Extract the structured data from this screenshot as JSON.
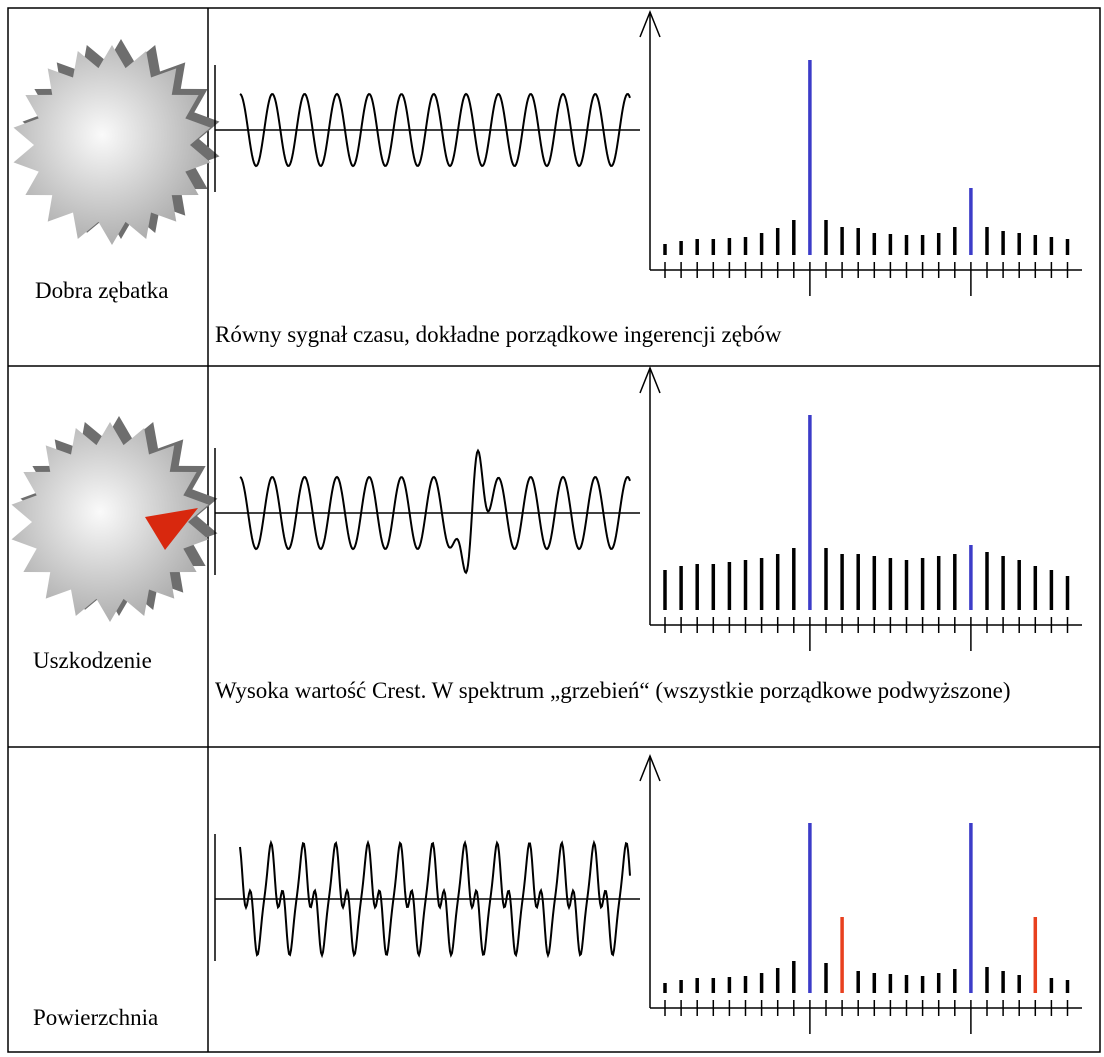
{
  "rows": [
    {
      "label": "Dobra zębatka",
      "caption": "Równy sygnał czasu, dokładne porządkowe ingerencji zębów"
    },
    {
      "label": "Uszkodzenie",
      "caption": "Wysoka wartość Crest. W spektrum „grzebień“ (wszystkie porządkowe podwyższone)"
    },
    {
      "label": "Powierzchnia"
    }
  ]
}
